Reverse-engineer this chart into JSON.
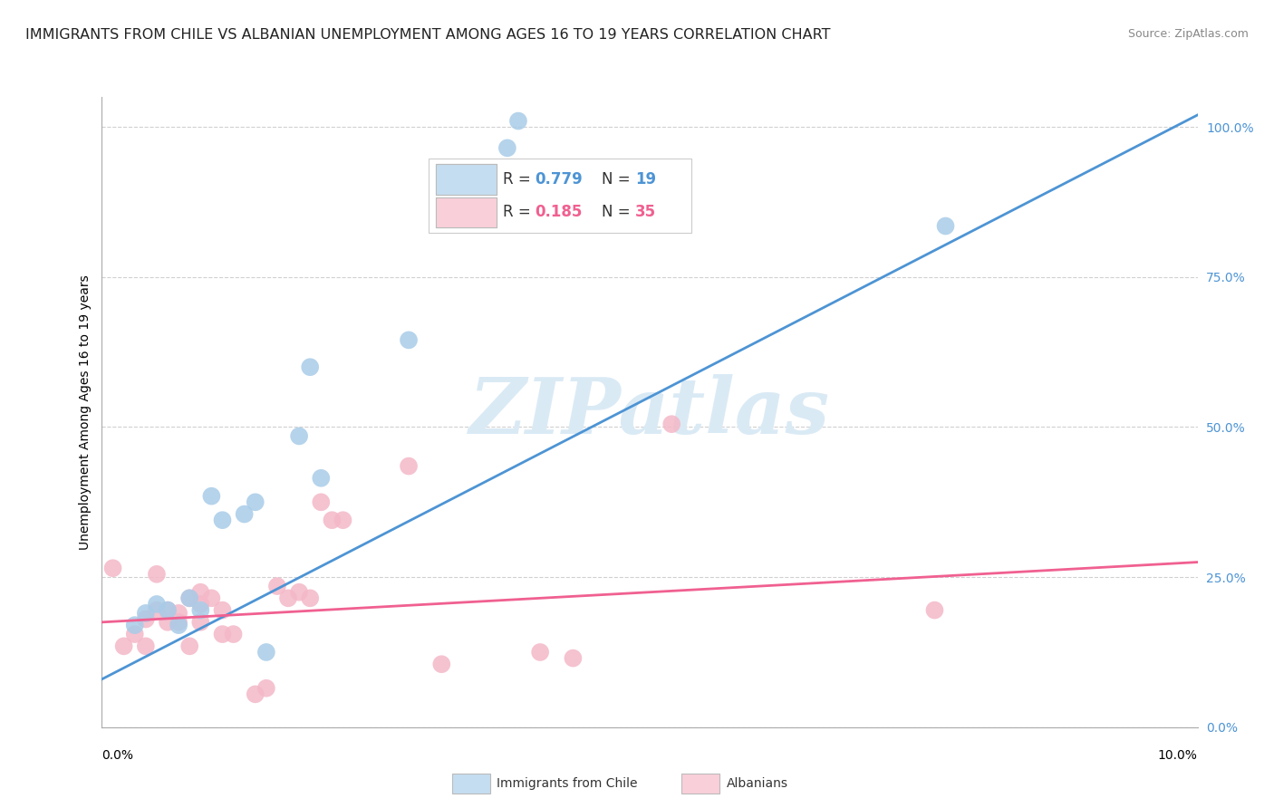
{
  "title": "IMMIGRANTS FROM CHILE VS ALBANIAN UNEMPLOYMENT AMONG AGES 16 TO 19 YEARS CORRELATION CHART",
  "source": "Source: ZipAtlas.com",
  "ylabel": "Unemployment Among Ages 16 to 19 years",
  "right_ytick_labels": [
    "0.0%",
    "25.0%",
    "50.0%",
    "75.0%",
    "100.0%"
  ],
  "right_ytick_vals": [
    0.0,
    0.25,
    0.5,
    0.75,
    1.0
  ],
  "xmin": 0.0,
  "xmax": 0.1,
  "ymin": 0.0,
  "ymax": 1.05,
  "legend1_R": "0.779",
  "legend1_N": "19",
  "legend2_R": "0.185",
  "legend2_N": "35",
  "blue_scatter_color": "#a8cce8",
  "pink_scatter_color": "#f4b8c8",
  "blue_line_color": "#4d94d4",
  "pink_line_color": "#f06090",
  "legend_blue_fill": "#c5ddf0",
  "legend_pink_fill": "#f9d0da",
  "watermark_text": "ZIPatlas",
  "watermark_color": "#daeaf5",
  "chile_scatter": [
    [
      0.003,
      0.17
    ],
    [
      0.004,
      0.19
    ],
    [
      0.005,
      0.205
    ],
    [
      0.006,
      0.195
    ],
    [
      0.007,
      0.17
    ],
    [
      0.008,
      0.215
    ],
    [
      0.009,
      0.195
    ],
    [
      0.01,
      0.385
    ],
    [
      0.011,
      0.345
    ],
    [
      0.013,
      0.355
    ],
    [
      0.014,
      0.375
    ],
    [
      0.015,
      0.125
    ],
    [
      0.018,
      0.485
    ],
    [
      0.019,
      0.6
    ],
    [
      0.02,
      0.415
    ],
    [
      0.028,
      0.645
    ],
    [
      0.037,
      0.965
    ],
    [
      0.038,
      1.01
    ],
    [
      0.077,
      0.835
    ]
  ],
  "albanian_scatter": [
    [
      0.001,
      0.265
    ],
    [
      0.002,
      0.135
    ],
    [
      0.003,
      0.155
    ],
    [
      0.004,
      0.135
    ],
    [
      0.004,
      0.18
    ],
    [
      0.005,
      0.195
    ],
    [
      0.005,
      0.255
    ],
    [
      0.006,
      0.175
    ],
    [
      0.006,
      0.195
    ],
    [
      0.007,
      0.175
    ],
    [
      0.007,
      0.19
    ],
    [
      0.008,
      0.135
    ],
    [
      0.008,
      0.215
    ],
    [
      0.009,
      0.225
    ],
    [
      0.009,
      0.205
    ],
    [
      0.009,
      0.175
    ],
    [
      0.01,
      0.215
    ],
    [
      0.011,
      0.155
    ],
    [
      0.011,
      0.195
    ],
    [
      0.012,
      0.155
    ],
    [
      0.014,
      0.055
    ],
    [
      0.015,
      0.065
    ],
    [
      0.016,
      0.235
    ],
    [
      0.017,
      0.215
    ],
    [
      0.018,
      0.225
    ],
    [
      0.019,
      0.215
    ],
    [
      0.02,
      0.375
    ],
    [
      0.021,
      0.345
    ],
    [
      0.022,
      0.345
    ],
    [
      0.028,
      0.435
    ],
    [
      0.031,
      0.105
    ],
    [
      0.04,
      0.125
    ],
    [
      0.043,
      0.115
    ],
    [
      0.052,
      0.505
    ],
    [
      0.076,
      0.195
    ]
  ],
  "chile_line": [
    [
      0.0,
      0.08
    ],
    [
      0.1,
      1.02
    ]
  ],
  "albanian_line": [
    [
      0.0,
      0.175
    ],
    [
      0.1,
      0.275
    ]
  ],
  "background_color": "#ffffff",
  "grid_color": "#d0d0d0",
  "title_fontsize": 11.5,
  "axis_label_fontsize": 10,
  "legend_fontsize": 12,
  "tick_fontsize": 10
}
